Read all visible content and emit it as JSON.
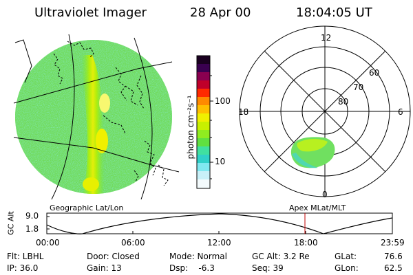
{
  "header": {
    "title": "Ultraviolet Imager",
    "date": "28 Apr 00",
    "time": "18:04:05 UT"
  },
  "colorbar": {
    "label": "photon cm⁻²s⁻¹",
    "ticks": [
      "100",
      "10"
    ],
    "colors": [
      "#1a0020",
      "#3a0050",
      "#5a0080",
      "#8a0050",
      "#c0002a",
      "#ff2a00",
      "#ff8a00",
      "#ffc000",
      "#f0f000",
      "#b0f000",
      "#70e830",
      "#40e080",
      "#30d0c8",
      "#80e8f0",
      "#c8f0f8",
      "#ffffff"
    ]
  },
  "polar": {
    "labels": {
      "top": "12",
      "right": "6",
      "left": "18",
      "bottom": "0"
    },
    "lat_labels": [
      "60",
      "70",
      "80"
    ]
  },
  "timeline": {
    "left_label": "Geographic Lat/Lon",
    "right_label": "Apex MLat/MLT",
    "axis_label": "GC Alt",
    "y_ticks": [
      "9.0",
      "1.8"
    ],
    "x_ticks": [
      "00:00",
      "06:00",
      "12:00",
      "18:00",
      "23:59"
    ],
    "marker_color": "#c00000"
  },
  "info": {
    "flt": "Flt: LBHL",
    "ip": "IP: 36.0",
    "door": "Door: Closed",
    "gain": "Gain: 13",
    "mode": "Mode: Normal",
    "dsp": "Dsp:    -6.3",
    "gcalt": "GC Alt: 3.2 Re",
    "seq": "Seq: 39",
    "glat_label": "GLat:",
    "glat_value": "76.6",
    "glon_label": "GLon:",
    "glon_value": "62.5"
  }
}
